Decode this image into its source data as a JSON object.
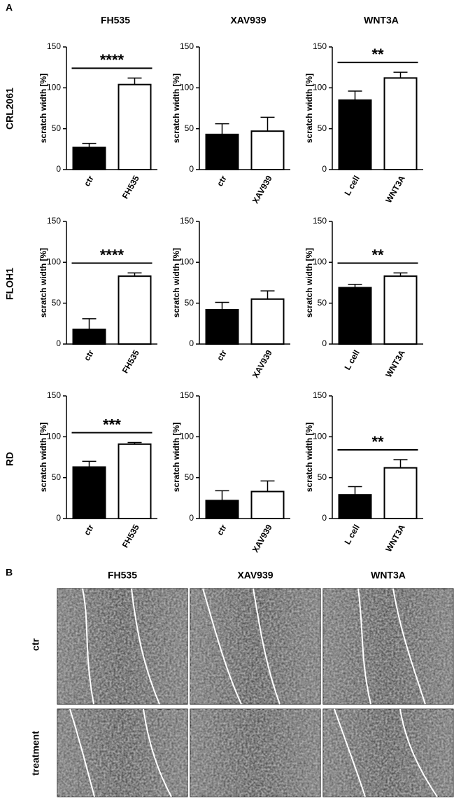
{
  "panel_a": {
    "label": "A",
    "columns": [
      "FH535",
      "XAV939",
      "WNT3A"
    ],
    "rows": [
      "CRL2061",
      "FLOH1",
      "RD"
    ]
  },
  "chart_data": [
    {
      "type": "bar",
      "ylabel": "scratch width [%]",
      "categories": [
        "ctr",
        "FH535"
      ],
      "values": [
        27,
        104
      ],
      "errors": [
        5,
        8
      ],
      "colors": [
        "#000000",
        "#ffffff"
      ],
      "ylim": [
        0,
        150
      ],
      "yticks": [
        0,
        50,
        100,
        150
      ],
      "annotation": "****"
    },
    {
      "type": "bar",
      "ylabel": "scratch width [%]",
      "categories": [
        "ctr",
        "XAV939"
      ],
      "values": [
        43,
        47
      ],
      "errors": [
        13,
        17
      ],
      "colors": [
        "#000000",
        "#ffffff"
      ],
      "ylim": [
        0,
        150
      ],
      "yticks": [
        0,
        50,
        100,
        150
      ]
    },
    {
      "type": "bar",
      "ylabel": "scratch width [%]",
      "categories": [
        "L cell",
        "WNT3A"
      ],
      "values": [
        85,
        112
      ],
      "errors": [
        11,
        7
      ],
      "colors": [
        "#000000",
        "#ffffff"
      ],
      "ylim": [
        0,
        150
      ],
      "yticks": [
        0,
        50,
        100,
        150
      ],
      "annotation": "**"
    },
    {
      "type": "bar",
      "ylabel": "scratch width [%]",
      "categories": [
        "ctr",
        "FH535"
      ],
      "values": [
        18,
        83
      ],
      "errors": [
        13,
        4
      ],
      "colors": [
        "#000000",
        "#ffffff"
      ],
      "ylim": [
        0,
        150
      ],
      "yticks": [
        0,
        50,
        100,
        150
      ],
      "annotation": "****"
    },
    {
      "type": "bar",
      "ylabel": "scratch width [%]",
      "categories": [
        "ctr",
        "XAV939"
      ],
      "values": [
        42,
        55
      ],
      "errors": [
        9,
        10
      ],
      "colors": [
        "#000000",
        "#ffffff"
      ],
      "ylim": [
        0,
        150
      ],
      "yticks": [
        0,
        50,
        100,
        150
      ]
    },
    {
      "type": "bar",
      "ylabel": "scratch width [%]",
      "categories": [
        "L cell",
        "WNT3A"
      ],
      "values": [
        69,
        83
      ],
      "errors": [
        4,
        4
      ],
      "colors": [
        "#000000",
        "#ffffff"
      ],
      "ylim": [
        0,
        150
      ],
      "yticks": [
        0,
        50,
        100,
        150
      ],
      "annotation": "**"
    },
    {
      "type": "bar",
      "ylabel": "scratch width [%]",
      "categories": [
        "ctr",
        "FH535"
      ],
      "values": [
        63,
        91
      ],
      "errors": [
        7,
        2
      ],
      "colors": [
        "#000000",
        "#ffffff"
      ],
      "ylim": [
        0,
        150
      ],
      "yticks": [
        0,
        50,
        100,
        150
      ],
      "annotation": "***"
    },
    {
      "type": "bar",
      "ylabel": "scratch width [%]",
      "categories": [
        "ctr",
        "XAV939"
      ],
      "values": [
        22,
        33
      ],
      "errors": [
        12,
        13
      ],
      "colors": [
        "#000000",
        "#ffffff"
      ],
      "ylim": [
        0,
        150
      ],
      "yticks": [
        0,
        50,
        100,
        150
      ]
    },
    {
      "type": "bar",
      "ylabel": "scratch width [%]",
      "categories": [
        "L cell",
        "WNT3A"
      ],
      "values": [
        29,
        62
      ],
      "errors": [
        10,
        10
      ],
      "colors": [
        "#000000",
        "#ffffff"
      ],
      "ylim": [
        0,
        150
      ],
      "yticks": [
        0,
        50,
        100,
        150
      ],
      "annotation": "**"
    }
  ],
  "panel_b": {
    "label": "B",
    "columns": [
      "FH535",
      "XAV939",
      "WNT3A"
    ],
    "rows": [
      "ctr",
      "treatment"
    ]
  }
}
